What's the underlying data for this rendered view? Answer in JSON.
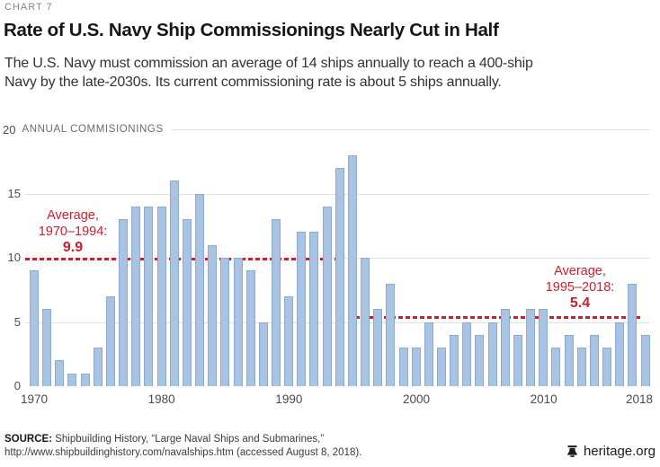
{
  "page": {
    "kicker": "CHART 7",
    "title": "Rate of U.S. Navy Ship Commissionings Nearly Cut in Half",
    "subtitle_line1": "The U.S. Navy must commission an average of 14 ships annually to reach a 400-ship",
    "subtitle_line2": "Navy by the late-2030s. Its current commissioning rate is about 5 ships annually."
  },
  "chart_data": {
    "type": "bar",
    "title": "Rate of U.S. Navy Ship Commissionings Nearly Cut in Half",
    "ylabel": "ANNUAL COMMISIONINGS",
    "years": [
      1970,
      1971,
      1972,
      1973,
      1974,
      1975,
      1976,
      1977,
      1978,
      1979,
      1980,
      1981,
      1982,
      1983,
      1984,
      1985,
      1986,
      1987,
      1988,
      1989,
      1990,
      1991,
      1992,
      1993,
      1994,
      1995,
      1996,
      1997,
      1998,
      1999,
      2000,
      2001,
      2002,
      2003,
      2004,
      2005,
      2006,
      2007,
      2008,
      2009,
      2010,
      2011,
      2012,
      2013,
      2014,
      2015,
      2016,
      2017,
      2018
    ],
    "values": [
      9,
      6,
      2,
      1,
      1,
      3,
      7,
      13,
      14,
      14,
      14,
      16,
      13,
      15,
      11,
      10,
      10,
      9,
      5,
      13,
      7,
      12,
      12,
      14,
      17,
      18,
      10,
      6,
      8,
      3,
      3,
      5,
      3,
      4,
      5,
      4,
      5,
      6,
      4,
      6,
      6,
      3,
      4,
      3,
      4,
      3,
      5,
      8,
      4
    ],
    "ylim": [
      0,
      20
    ],
    "yticks": [
      0,
      5,
      10,
      15,
      20
    ],
    "xticks": [
      1970,
      1980,
      1990,
      2000,
      2010,
      2018
    ],
    "grid": true,
    "legend": "none",
    "annotations": [
      {
        "line1": "Average,",
        "line2": "1970–1994:",
        "value_label": "9.9",
        "value": 9.9,
        "span": [
          1970,
          1994
        ]
      },
      {
        "line1": "Average,",
        "line2": "1995–2018:",
        "value_label": "5.4",
        "value": 5.4,
        "span": [
          1995,
          2018
        ]
      }
    ],
    "colors": {
      "bar_fill": "#a9c4e2",
      "bar_border": "#8dabce",
      "grid": "#e2e2e2",
      "annotation": "#c8202e"
    }
  },
  "footer": {
    "source_label": "SOURCE: ",
    "source_line1": "Shipbuilding History, “Large Naval Ships and Submarines,”",
    "source_line2": "http://www.shipbuildinghistory.com/navalships.htm (accessed August 8, 2018).",
    "brand": "heritage.org"
  }
}
